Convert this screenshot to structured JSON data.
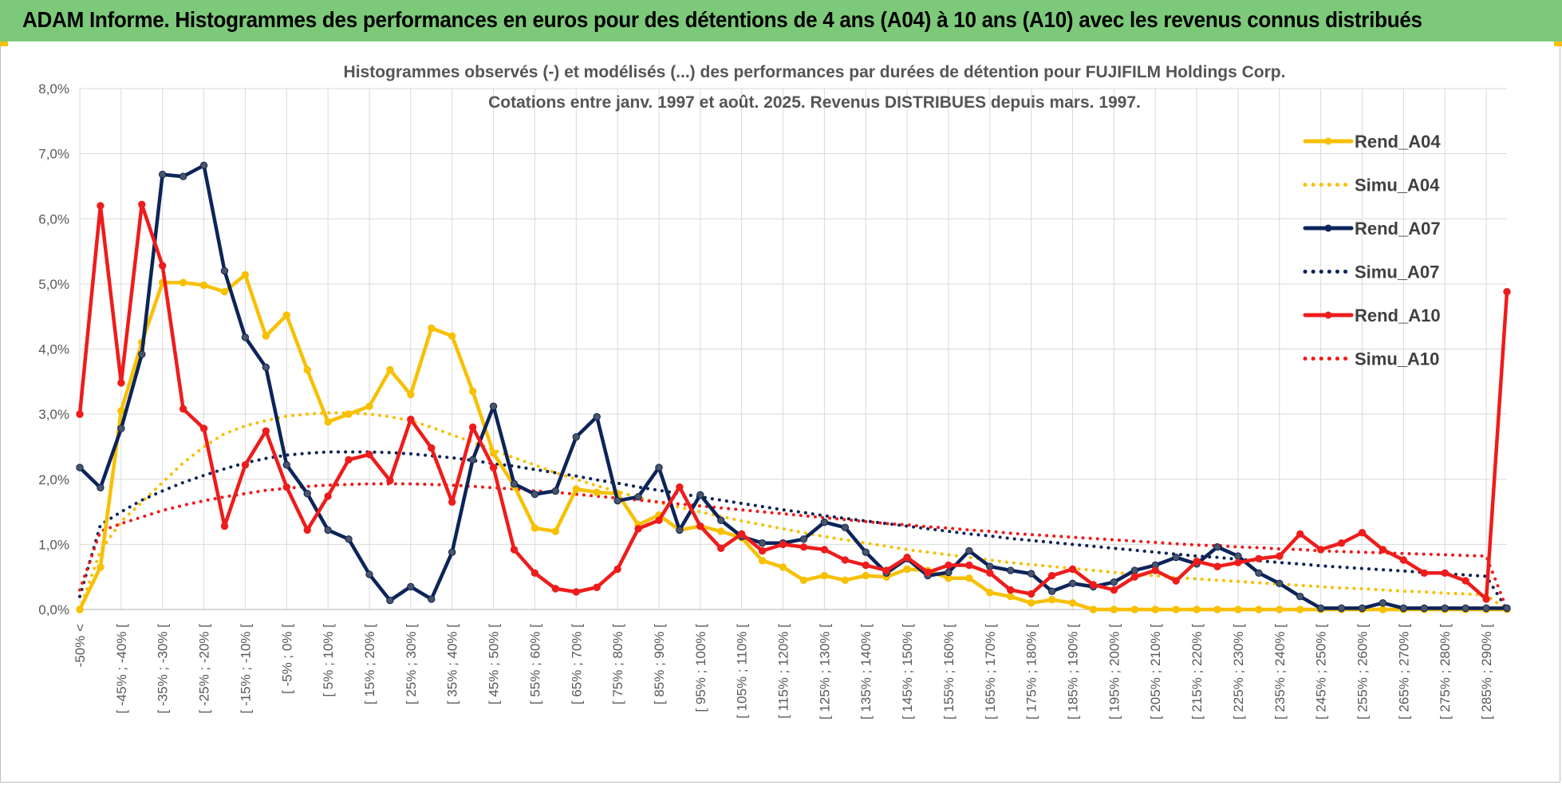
{
  "header": {
    "title": "ADAM Informe. Histogrammes des performances en euros pour des détentions de 4 ans (A04) à 10 ans (A10) avec les revenus connus distribués"
  },
  "colors": {
    "banner": "#7dc97a",
    "yellow": "#f7c000",
    "navy": "#0c2459",
    "red": "#ee1c1c",
    "grid": "#d9d9d9"
  },
  "chart_data": {
    "type": "line",
    "title": "Histogrammes observés (-) et modélisés (...) des performances par durées de détention pour FUJIFILM Holdings Corp.",
    "subtitle": "Cotations entre janv. 1997 et août. 2025. Revenus DISTRIBUES depuis mars. 1997.",
    "xlabel": "",
    "ylabel": "",
    "ylim": [
      0,
      8
    ],
    "yticks": [
      "0,0%",
      "1,0%",
      "2,0%",
      "3,0%",
      "4,0%",
      "5,0%",
      "6,0%",
      "7,0%",
      "8,0%"
    ],
    "grid": true,
    "legend_position": "top-right",
    "categories_count": 70,
    "x_tick_labels": [
      "-50% <",
      "[ -45% ; -40% [",
      "[ -35% ; -30% [",
      "[ -25% ; -20% [",
      "[ -15% ; -10% [",
      "[ -5% ; 0% [",
      "[ 5% ; 10% [",
      "[ 15% ; 20% [",
      "[ 25% ; 30% [",
      "[ 35% ; 40% [",
      "[ 45% ; 50% [",
      "[ 55% ; 60% [",
      "[ 65% ; 70% [",
      "[ 75% ; 80% [",
      "[ 85% ; 90% [",
      "[ 95% ; 100% [",
      "[ 105% ; 110% [",
      "[ 115% ; 120% [",
      "[ 125% ; 130% [",
      "[ 135% ; 140% [",
      "[ 145% ; 150% [",
      "[ 155% ; 160% [",
      "[ 165% ; 170% [",
      "[ 175% ; 180% [",
      "[ 185% ; 190% [",
      "[ 195% ; 200% [",
      "[ 205% ; 210% [",
      "[ 215% ; 220% [",
      "[ 225% ; 230% [",
      "[ 235% ; 240% [",
      "[ 245% ; 250% [",
      "[ 255% ; 260% [",
      "[ 265% ; 270% [",
      "[ 275% ; 280% [",
      "[ 285% ; 290% ["
    ],
    "series": [
      {
        "name": "Rend_A04",
        "style": "solid",
        "color": "#f7c000",
        "markers": true,
        "values": [
          0,
          0.65,
          3.05,
          4.1,
          5.02,
          5.02,
          4.98,
          4.88,
          5.14,
          4.2,
          4.52,
          3.68,
          2.88,
          3.0,
          3.12,
          3.68,
          3.3,
          4.32,
          4.2,
          3.35,
          2.4,
          1.9,
          1.25,
          1.2,
          1.85,
          1.8,
          1.78,
          1.3,
          1.45,
          1.22,
          1.28,
          1.2,
          1.1,
          0.75,
          0.65,
          0.45,
          0.52,
          0.45,
          0.52,
          0.5,
          0.62,
          0.6,
          0.48,
          0.48,
          0.26,
          0.2,
          0.1,
          0.15,
          0.1,
          0,
          0,
          0,
          0,
          0,
          0,
          0,
          0,
          0,
          0,
          0,
          0,
          0,
          0,
          0,
          0,
          0,
          0,
          0,
          0,
          0
        ]
      },
      {
        "name": "Simu_A04",
        "style": "dotted",
        "color": "#f7c000",
        "markers": false,
        "values": [
          0,
          0.9,
          1.35,
          1.65,
          1.95,
          2.25,
          2.5,
          2.7,
          2.82,
          2.9,
          2.97,
          3.0,
          3.02,
          3.02,
          3.0,
          2.96,
          2.9,
          2.8,
          2.68,
          2.57,
          2.45,
          2.33,
          2.22,
          2.1,
          2.0,
          1.9,
          1.81,
          1.72,
          1.64,
          1.57,
          1.5,
          1.43,
          1.36,
          1.3,
          1.24,
          1.18,
          1.12,
          1.07,
          1.02,
          0.97,
          0.92,
          0.88,
          0.84,
          0.8,
          0.76,
          0.72,
          0.69,
          0.66,
          0.63,
          0.6,
          0.57,
          0.54,
          0.52,
          0.49,
          0.47,
          0.45,
          0.43,
          0.41,
          0.39,
          0.37,
          0.35,
          0.33,
          0.32,
          0.3,
          0.28,
          0.27,
          0.25,
          0.24,
          0.22,
          0.0
        ]
      },
      {
        "name": "Rend_A07",
        "style": "solid",
        "color": "#0c2459",
        "markers": true,
        "values": [
          2.18,
          1.87,
          2.78,
          3.92,
          6.68,
          6.65,
          6.82,
          5.2,
          4.18,
          3.72,
          2.22,
          1.78,
          1.22,
          1.08,
          0.54,
          0.14,
          0.35,
          0.16,
          0.88,
          2.3,
          3.12,
          1.93,
          1.77,
          1.82,
          2.65,
          2.96,
          1.67,
          1.73,
          2.18,
          1.22,
          1.76,
          1.37,
          1.12,
          1.02,
          1.02,
          1.08,
          1.34,
          1.26,
          0.88,
          0.56,
          0.78,
          0.52,
          0.57,
          0.9,
          0.66,
          0.6,
          0.55,
          0.28,
          0.4,
          0.35,
          0.42,
          0.6,
          0.68,
          0.8,
          0.7,
          0.96,
          0.82,
          0.56,
          0.4,
          0.2,
          0.02,
          0.02,
          0.02,
          0.1,
          0.02,
          0.02,
          0.02,
          0.02,
          0.02,
          0.02
        ]
      },
      {
        "name": "Simu_A07",
        "style": "dotted",
        "color": "#0c2459",
        "markers": false,
        "values": [
          0.2,
          1.3,
          1.5,
          1.68,
          1.82,
          1.95,
          2.06,
          2.16,
          2.25,
          2.32,
          2.37,
          2.4,
          2.42,
          2.42,
          2.42,
          2.41,
          2.39,
          2.36,
          2.33,
          2.29,
          2.24,
          2.2,
          2.15,
          2.1,
          2.05,
          1.99,
          1.94,
          1.88,
          1.83,
          1.78,
          1.73,
          1.68,
          1.63,
          1.58,
          1.53,
          1.49,
          1.44,
          1.4,
          1.36,
          1.32,
          1.28,
          1.24,
          1.2,
          1.16,
          1.13,
          1.09,
          1.06,
          1.03,
          1.0,
          0.97,
          0.94,
          0.91,
          0.88,
          0.85,
          0.82,
          0.8,
          0.77,
          0.75,
          0.72,
          0.7,
          0.67,
          0.65,
          0.63,
          0.61,
          0.59,
          0.57,
          0.55,
          0.53,
          0.51,
          0.0
        ]
      },
      {
        "name": "Rend_A10",
        "style": "solid",
        "color": "#ee1c1c",
        "markers": true,
        "values": [
          3.0,
          6.2,
          3.48,
          6.22,
          5.28,
          3.08,
          2.78,
          1.28,
          2.22,
          2.74,
          1.88,
          1.22,
          1.74,
          2.3,
          2.38,
          1.98,
          2.92,
          2.48,
          1.65,
          2.8,
          2.18,
          0.92,
          0.56,
          0.32,
          0.27,
          0.34,
          0.62,
          1.24,
          1.37,
          1.88,
          1.28,
          0.94,
          1.16,
          0.9,
          1.0,
          0.96,
          0.92,
          0.76,
          0.68,
          0.6,
          0.8,
          0.57,
          0.68,
          0.68,
          0.56,
          0.3,
          0.24,
          0.52,
          0.62,
          0.38,
          0.3,
          0.5,
          0.6,
          0.44,
          0.74,
          0.66,
          0.72,
          0.78,
          0.82,
          1.16,
          0.92,
          1.02,
          1.18,
          0.92,
          0.76,
          0.56,
          0.56,
          0.44,
          0.16,
          4.88
        ]
      },
      {
        "name": "Simu_A10",
        "style": "dotted",
        "color": "#ee1c1c",
        "markers": false,
        "values": [
          0.3,
          1.2,
          1.32,
          1.42,
          1.52,
          1.6,
          1.67,
          1.73,
          1.78,
          1.83,
          1.86,
          1.89,
          1.91,
          1.92,
          1.93,
          1.93,
          1.93,
          1.92,
          1.91,
          1.89,
          1.87,
          1.85,
          1.82,
          1.8,
          1.77,
          1.74,
          1.71,
          1.68,
          1.65,
          1.62,
          1.59,
          1.56,
          1.53,
          1.5,
          1.47,
          1.44,
          1.41,
          1.38,
          1.35,
          1.32,
          1.3,
          1.27,
          1.25,
          1.22,
          1.2,
          1.17,
          1.15,
          1.13,
          1.11,
          1.09,
          1.07,
          1.05,
          1.03,
          1.01,
          0.99,
          0.98,
          0.96,
          0.95,
          0.93,
          0.92,
          0.9,
          0.89,
          0.88,
          0.87,
          0.86,
          0.85,
          0.84,
          0.83,
          0.82,
          0.0
        ]
      }
    ]
  }
}
